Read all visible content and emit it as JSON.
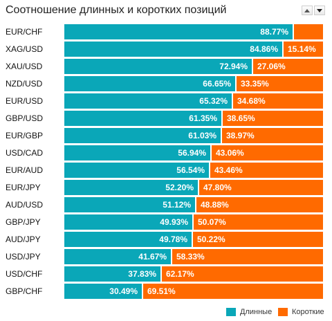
{
  "title": "Соотношение длинных и коротких позиций",
  "nav": {
    "up_icon": "arrow-up-icon",
    "down_icon": "arrow-down-icon"
  },
  "colors": {
    "long": "#0aa7b8",
    "short": "#ff6a00"
  },
  "legend": {
    "long_label": "Длинные",
    "short_label": "Короткие"
  },
  "chart_data": {
    "type": "bar",
    "stacked": true,
    "orientation": "horizontal",
    "title": "Соотношение длинных и коротких позиций",
    "categories": [
      "EUR/CHF",
      "XAG/USD",
      "XAU/USD",
      "NZD/USD",
      "EUR/USD",
      "GBP/USD",
      "EUR/GBP",
      "USD/CAD",
      "EUR/AUD",
      "EUR/JPY",
      "AUD/USD",
      "GBP/JPY",
      "AUD/JPY",
      "USD/JPY",
      "USD/CHF",
      "GBP/CHF"
    ],
    "series": [
      {
        "name": "Длинные",
        "values": [
          88.77,
          84.86,
          72.94,
          66.65,
          65.32,
          61.35,
          61.03,
          56.94,
          56.54,
          52.2,
          51.12,
          49.93,
          49.78,
          41.67,
          37.83,
          30.49
        ]
      },
      {
        "name": "Короткие",
        "values": [
          11.23,
          15.14,
          27.06,
          33.35,
          34.68,
          38.65,
          38.97,
          43.06,
          43.46,
          47.8,
          48.88,
          50.07,
          50.22,
          58.33,
          62.17,
          69.51
        ]
      }
    ],
    "long_labels": [
      "88.77%",
      "84.86%",
      "72.94%",
      "66.65%",
      "65.32%",
      "61.35%",
      "61.03%",
      "56.94%",
      "56.54%",
      "52.20%",
      "51.12%",
      "49.93%",
      "49.78%",
      "41.67%",
      "37.83%",
      "30.49%"
    ],
    "short_labels": [
      "",
      "15.14%",
      "27.06%",
      "33.35%",
      "34.68%",
      "38.65%",
      "38.97%",
      "43.06%",
      "43.46%",
      "47.80%",
      "48.88%",
      "50.07%",
      "50.22%",
      "58.33%",
      "62.17%",
      "69.51%"
    ],
    "xlim": [
      0,
      100
    ],
    "legend_position": "bottom-right",
    "grid": false
  }
}
